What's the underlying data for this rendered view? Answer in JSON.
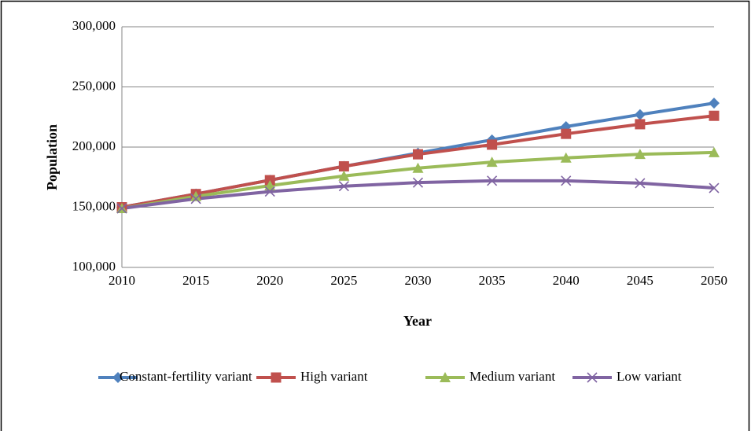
{
  "chart_data": {
    "type": "line",
    "x_label": "Year",
    "y_label": "Population",
    "categories": [
      "2010",
      "2015",
      "2020",
      "2025",
      "2030",
      "2035",
      "2040",
      "2045",
      "2050"
    ],
    "series": [
      {
        "name": "Constant-fertility variant",
        "color": "#4f81bd",
        "marker": "diamond",
        "values": [
          150000,
          161000,
          172500,
          184000,
          195000,
          206000,
          217000,
          227000,
          236500
        ]
      },
      {
        "name": "High variant",
        "color": "#c0504d",
        "marker": "square",
        "values": [
          150000,
          161000,
          172500,
          184000,
          194000,
          202000,
          211000,
          219000,
          226000
        ]
      },
      {
        "name": "Medium variant",
        "color": "#9bbb59",
        "marker": "triangle",
        "values": [
          149000,
          159000,
          168000,
          176000,
          182500,
          187500,
          191000,
          194000,
          195500
        ]
      },
      {
        "name": "Low variant",
        "color": "#8064a2",
        "marker": "x",
        "values": [
          149000,
          157000,
          163000,
          167500,
          170500,
          172000,
          172000,
          170000,
          166000
        ]
      }
    ],
    "ylim": [
      100000,
      300000
    ],
    "yticks": [
      {
        "value": 100000,
        "label": "100,000"
      },
      {
        "value": 150000,
        "label": "150,000"
      },
      {
        "value": 200000,
        "label": "200,000"
      },
      {
        "value": 250000,
        "label": "250,000"
      },
      {
        "value": 300000,
        "label": "300,000"
      }
    ],
    "grid": true,
    "legend": "bottom"
  }
}
